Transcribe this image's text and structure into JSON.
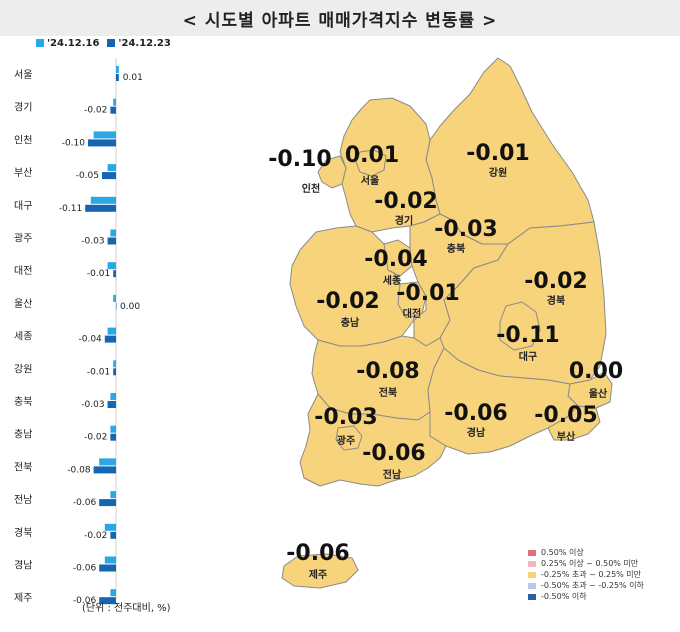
{
  "title": "< 시도별 아파트 매매가격지수 변동률 >",
  "chart_data": {
    "type": "bar",
    "orientation": "horizontal",
    "categories": [
      "서울",
      "경기",
      "인천",
      "부산",
      "대구",
      "광주",
      "대전",
      "울산",
      "세종",
      "강원",
      "충북",
      "충남",
      "전북",
      "전남",
      "경북",
      "경남",
      "제주"
    ],
    "series": [
      {
        "name": "'24.12.16",
        "color": "#29a8e6",
        "values": [
          0.01,
          -0.01,
          -0.08,
          -0.03,
          -0.09,
          -0.02,
          -0.03,
          -0.01,
          -0.03,
          -0.01,
          -0.02,
          -0.02,
          -0.06,
          -0.02,
          -0.04,
          -0.04,
          -0.02
        ]
      },
      {
        "name": "'24.12.23",
        "color": "#1565b0",
        "values": [
          0.01,
          -0.02,
          -0.1,
          -0.05,
          -0.11,
          -0.03,
          -0.01,
          0.0,
          -0.04,
          -0.01,
          -0.03,
          -0.02,
          -0.08,
          -0.06,
          -0.02,
          -0.06,
          -0.06
        ]
      }
    ],
    "data_labels": [
      "0.01",
      "-0.02",
      "-0.10",
      "-0.05",
      "-0.11",
      "-0.03",
      "-0.01",
      "0.00",
      "-0.04",
      "-0.01",
      "-0.03",
      "-0.02",
      "-0.08",
      "-0.06",
      "-0.02",
      "-0.06",
      "-0.06"
    ],
    "unit_note": "(단위 : 전주대비, %)"
  },
  "map": {
    "regions": [
      {
        "name": "인천",
        "value": "-0.10"
      },
      {
        "name": "서울",
        "value": "0.01"
      },
      {
        "name": "강원",
        "value": "-0.01"
      },
      {
        "name": "경기",
        "value": "-0.02"
      },
      {
        "name": "충북",
        "value": "-0.03"
      },
      {
        "name": "세종",
        "value": "-0.04"
      },
      {
        "name": "경북",
        "value": "-0.02"
      },
      {
        "name": "충남",
        "value": "-0.02"
      },
      {
        "name": "대전",
        "value": "-0.01"
      },
      {
        "name": "대구",
        "value": "-0.11"
      },
      {
        "name": "울산",
        "value": "0.00"
      },
      {
        "name": "전북",
        "value": "-0.08"
      },
      {
        "name": "광주",
        "value": "-0.03"
      },
      {
        "name": "경남",
        "value": "-0.06"
      },
      {
        "name": "부산",
        "value": "-0.05"
      },
      {
        "name": "전남",
        "value": "-0.06"
      },
      {
        "name": "제주",
        "value": "-0.06"
      }
    ],
    "fill_color": "#f7d47c",
    "border_color": "#8a8a8a"
  },
  "map_legend": [
    {
      "label": "0.50% 이상",
      "color": "#e0707e"
    },
    {
      "label": "0.25% 이상 ~ 0.50% 미만",
      "color": "#f3b6c0"
    },
    {
      "label": "-0.25% 초과 ~ 0.25% 미만",
      "color": "#f7d47c"
    },
    {
      "label": "-0.50% 초과 ~ -0.25% 이하",
      "color": "#b9c9ea"
    },
    {
      "label": "-0.50% 이하",
      "color": "#2f5ea8"
    }
  ]
}
